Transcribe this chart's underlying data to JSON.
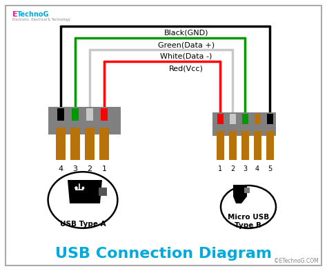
{
  "title": "USB Connection Diagram",
  "title_color": "#00AADD",
  "title_fontsize": 16,
  "bg_color": "#FFFFFF",
  "watermark": "©ETechnoG.COM",
  "logo_text": "ETechnoG",
  "wire_labels": [
    "Black(GND)",
    "Green(Data +)",
    "White(Data -)",
    "Red(Vcc)"
  ],
  "wire_colors": [
    "#000000",
    "#009900",
    "#C8C8C8",
    "#FF0000"
  ],
  "wire_lw": [
    2.5,
    2.5,
    2.5,
    2.5
  ],
  "connector_color": "#808080",
  "pin_color": "#B8720A",
  "label_a": "USB Type A",
  "label_b_line1": "Micro USB",
  "label_b_line2": "Type B",
  "usb_a_pins": [
    "4",
    "3",
    "2",
    "1"
  ],
  "usb_b_pins": [
    "1",
    "2",
    "3",
    "4",
    "5"
  ],
  "logo_color_E": "#FF1493",
  "logo_color_rest": "#FF1493"
}
